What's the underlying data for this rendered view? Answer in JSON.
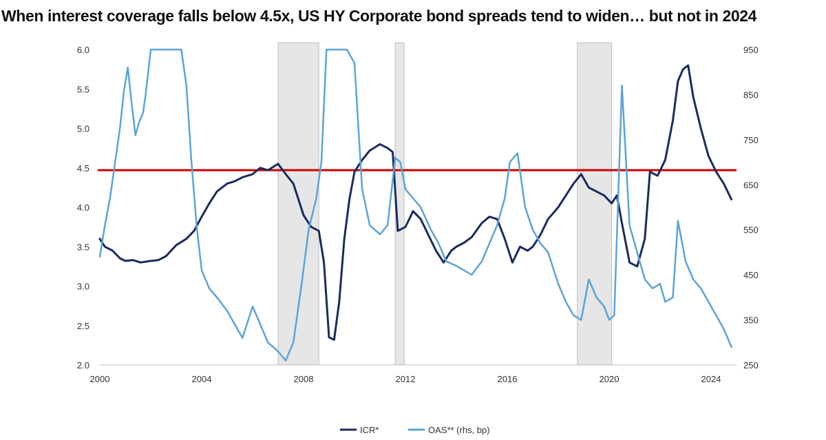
{
  "chart_data": {
    "type": "line",
    "title": "When interest coverage falls below 4.5x, US HY Corporate bond spreads tend to widen… but not in 2024",
    "xlim": [
      2000,
      2025
    ],
    "x_ticks": [
      2000,
      2004,
      2008,
      2012,
      2016,
      2020,
      2024
    ],
    "ylim_left": [
      2.0,
      6.0
    ],
    "y_ticks_left": [
      "2.0",
      "2.5",
      "3.0",
      "3.5",
      "4.0",
      "4.5",
      "5.0",
      "5.5",
      "6.0"
    ],
    "ylim_right": [
      250,
      950
    ],
    "y_ticks_right": [
      250,
      350,
      450,
      550,
      650,
      750,
      850,
      950
    ],
    "threshold_line": {
      "value": 4.47,
      "axis": "left",
      "color": "#cc0000"
    },
    "recession_shading": [
      [
        2007.0,
        2008.6
      ],
      [
        2011.6,
        2011.95
      ],
      [
        2018.75,
        2020.1
      ]
    ],
    "legend_position": "bottom-center",
    "series": [
      {
        "name": "ICR*",
        "axis": "left",
        "color": "#1b2a5e",
        "x": [
          2000.0,
          2000.2,
          2000.5,
          2000.8,
          2001.0,
          2001.3,
          2001.6,
          2002.0,
          2002.3,
          2002.6,
          2003.0,
          2003.4,
          2003.7,
          2004.0,
          2004.3,
          2004.6,
          2005.0,
          2005.3,
          2005.6,
          2006.0,
          2006.3,
          2006.6,
          2007.0,
          2007.3,
          2007.6,
          2008.0,
          2008.3,
          2008.6,
          2008.8,
          2009.0,
          2009.2,
          2009.4,
          2009.6,
          2009.8,
          2010.0,
          2010.3,
          2010.6,
          2011.0,
          2011.3,
          2011.5,
          2011.7,
          2012.0,
          2012.3,
          2012.6,
          2012.9,
          2013.2,
          2013.5,
          2013.8,
          2014.0,
          2014.3,
          2014.6,
          2015.0,
          2015.3,
          2015.6,
          2015.9,
          2016.2,
          2016.5,
          2016.8,
          2017.0,
          2017.3,
          2017.6,
          2018.0,
          2018.3,
          2018.6,
          2018.9,
          2019.2,
          2019.5,
          2019.8,
          2020.1,
          2020.3,
          2020.5,
          2020.8,
          2021.1,
          2021.4,
          2021.6,
          2021.9,
          2022.2,
          2022.5,
          2022.7,
          2022.9,
          2023.1,
          2023.3,
          2023.6,
          2023.9,
          2024.2,
          2024.5,
          2024.8
        ],
        "values": [
          3.6,
          3.5,
          3.45,
          3.35,
          3.32,
          3.33,
          3.3,
          3.32,
          3.33,
          3.38,
          3.52,
          3.6,
          3.7,
          3.88,
          4.05,
          4.2,
          4.3,
          4.33,
          4.38,
          4.42,
          4.5,
          4.47,
          4.55,
          4.42,
          4.3,
          3.9,
          3.75,
          3.7,
          3.3,
          2.35,
          2.32,
          2.8,
          3.6,
          4.1,
          4.45,
          4.6,
          4.72,
          4.8,
          4.75,
          4.7,
          3.7,
          3.75,
          3.95,
          3.85,
          3.65,
          3.45,
          3.3,
          3.45,
          3.5,
          3.55,
          3.62,
          3.8,
          3.88,
          3.85,
          3.6,
          3.3,
          3.5,
          3.45,
          3.5,
          3.65,
          3.85,
          4.0,
          4.15,
          4.3,
          4.42,
          4.25,
          4.2,
          4.15,
          4.05,
          4.15,
          3.8,
          3.3,
          3.25,
          3.6,
          4.45,
          4.4,
          4.6,
          5.1,
          5.6,
          5.75,
          5.8,
          5.4,
          5.0,
          4.65,
          4.45,
          4.3,
          4.1
        ]
      },
      {
        "name": "OAS** (rhs, bp)",
        "axis": "right",
        "color": "#5ba3d9",
        "x": [
          2000.0,
          2000.2,
          2000.4,
          2000.6,
          2000.8,
          2000.95,
          2001.1,
          2001.25,
          2001.4,
          2001.55,
          2001.7,
          2001.8,
          2002.0,
          2002.2,
          2002.4,
          2002.6,
          2002.8,
          2003.0,
          2003.2,
          2003.4,
          2003.6,
          2003.8,
          2004.0,
          2004.3,
          2004.6,
          2005.0,
          2005.3,
          2005.6,
          2006.0,
          2006.3,
          2006.6,
          2007.0,
          2007.3,
          2007.6,
          2007.9,
          2008.2,
          2008.5,
          2008.7,
          2008.9,
          2009.1,
          2009.3,
          2009.5,
          2009.7,
          2010.0,
          2010.3,
          2010.6,
          2011.0,
          2011.3,
          2011.6,
          2011.8,
          2012.0,
          2012.3,
          2012.6,
          2013.0,
          2013.3,
          2013.6,
          2014.0,
          2014.3,
          2014.6,
          2015.0,
          2015.3,
          2015.6,
          2015.9,
          2016.1,
          2016.4,
          2016.7,
          2017.0,
          2017.3,
          2017.6,
          2018.0,
          2018.3,
          2018.6,
          2018.9,
          2019.2,
          2019.5,
          2019.8,
          2020.0,
          2020.2,
          2020.5,
          2020.8,
          2021.1,
          2021.4,
          2021.7,
          2022.0,
          2022.2,
          2022.5,
          2022.7,
          2023.0,
          2023.3,
          2023.6,
          2023.9,
          2024.2,
          2024.5,
          2024.8
        ],
        "values": [
          490,
          560,
          620,
          700,
          780,
          860,
          910,
          830,
          760,
          790,
          810,
          850,
          950,
          950,
          950,
          950,
          950,
          950,
          950,
          870,
          700,
          560,
          460,
          420,
          400,
          370,
          340,
          310,
          380,
          340,
          300,
          280,
          260,
          300,
          420,
          550,
          620,
          700,
          950,
          950,
          950,
          950,
          950,
          920,
          640,
          560,
          540,
          560,
          710,
          700,
          640,
          620,
          600,
          550,
          520,
          480,
          470,
          460,
          450,
          480,
          520,
          560,
          620,
          700,
          720,
          600,
          550,
          520,
          500,
          430,
          390,
          360,
          350,
          440,
          400,
          380,
          350,
          360,
          870,
          560,
          500,
          440,
          420,
          430,
          390,
          400,
          570,
          480,
          440,
          420,
          390,
          360,
          330,
          290
        ]
      }
    ]
  }
}
